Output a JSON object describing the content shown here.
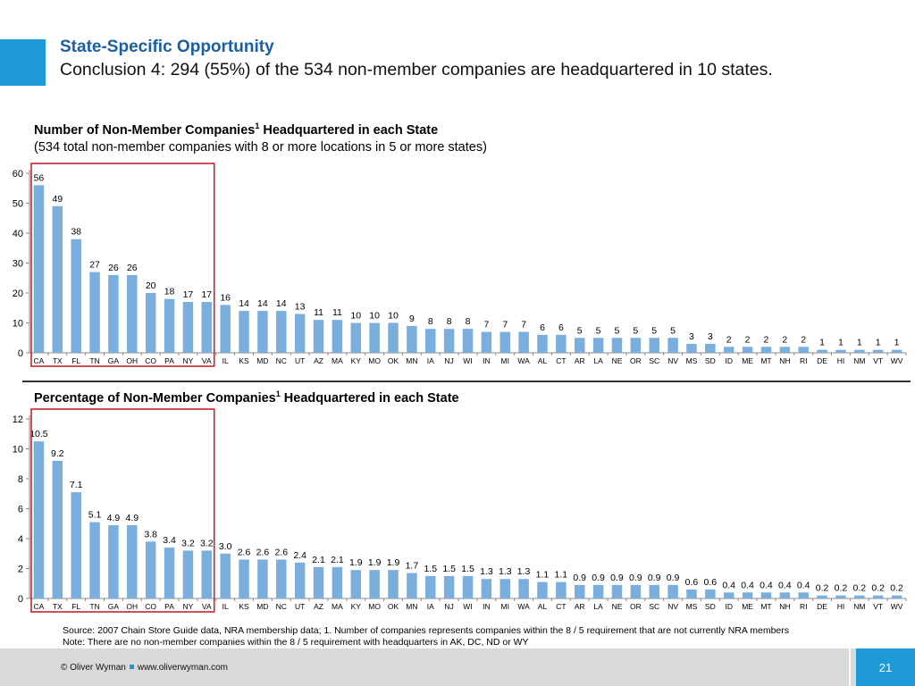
{
  "header": {
    "title": "State-Specific Opportunity",
    "subtitle": "Conclusion 4: 294 (55%) of the 534 non-member companies are headquartered in 10 states."
  },
  "colors": {
    "bar": "#7aaedc",
    "accent": "#1e9bd7",
    "highlight_box": "#c1272d",
    "title": "#1a5fa0"
  },
  "chart_data": [
    {
      "type": "bar",
      "title": "Number of Non-Member Companies",
      "title_sup": "1",
      "title_suffix": " Headquartered in each State",
      "subtitle": "(534 total non-member companies with 8 or more locations in 5 or more states)",
      "categories": [
        "CA",
        "TX",
        "FL",
        "TN",
        "GA",
        "OH",
        "CO",
        "PA",
        "NY",
        "VA",
        "IL",
        "KS",
        "MD",
        "NC",
        "UT",
        "AZ",
        "MA",
        "KY",
        "MO",
        "OK",
        "MN",
        "IA",
        "NJ",
        "WI",
        "IN",
        "MI",
        "WA",
        "AL",
        "CT",
        "AR",
        "LA",
        "NE",
        "OR",
        "SC",
        "NV",
        "MS",
        "SD",
        "ID",
        "ME",
        "MT",
        "NH",
        "RI",
        "DE",
        "HI",
        "NM",
        "VT",
        "WV"
      ],
      "values": [
        56,
        49,
        38,
        27,
        26,
        26,
        20,
        18,
        17,
        17,
        16,
        14,
        14,
        14,
        13,
        11,
        11,
        10,
        10,
        10,
        9,
        8,
        8,
        8,
        7,
        7,
        7,
        6,
        6,
        5,
        5,
        5,
        5,
        5,
        5,
        3,
        3,
        2,
        2,
        2,
        2,
        2,
        1,
        1,
        1,
        1,
        1
      ],
      "value_labels": [
        "56",
        "49",
        "38",
        "27",
        "26",
        "26",
        "20",
        "18",
        "17",
        "17",
        "16",
        "14",
        "14",
        "14",
        "13",
        "11",
        "11",
        "10",
        "10",
        "10",
        "9",
        "8",
        "8",
        "8",
        "7",
        "7",
        "7",
        "6",
        "6",
        "5",
        "5",
        "5",
        "5",
        "5",
        "5",
        "3",
        "3",
        "2",
        "2",
        "2",
        "2",
        "2",
        "1",
        "1",
        "1",
        "1",
        "1"
      ],
      "yticks": [
        "0",
        "10",
        "20",
        "30",
        "40",
        "50",
        "60"
      ],
      "ylim": [
        0,
        60
      ],
      "highlight": "top 10 states (CA to VA)"
    },
    {
      "type": "bar",
      "title": "Percentage of Non-Member Companies",
      "title_sup": "1",
      "title_suffix": " Headquartered in each State",
      "categories": [
        "CA",
        "TX",
        "FL",
        "TN",
        "GA",
        "OH",
        "CO",
        "PA",
        "NY",
        "VA",
        "IL",
        "KS",
        "MD",
        "NC",
        "UT",
        "AZ",
        "MA",
        "KY",
        "MO",
        "OK",
        "MN",
        "IA",
        "NJ",
        "WI",
        "IN",
        "MI",
        "WA",
        "AL",
        "CT",
        "AR",
        "LA",
        "NE",
        "OR",
        "SC",
        "NV",
        "MS",
        "SD",
        "ID",
        "ME",
        "MT",
        "NH",
        "RI",
        "DE",
        "HI",
        "NM",
        "VT",
        "WV"
      ],
      "values": [
        10.5,
        9.2,
        7.1,
        5.1,
        4.9,
        4.9,
        3.8,
        3.4,
        3.2,
        3.2,
        3.0,
        2.6,
        2.6,
        2.6,
        2.4,
        2.1,
        2.1,
        1.9,
        1.9,
        1.9,
        1.7,
        1.5,
        1.5,
        1.5,
        1.3,
        1.3,
        1.3,
        1.1,
        1.1,
        0.9,
        0.9,
        0.9,
        0.9,
        0.9,
        0.9,
        0.6,
        0.6,
        0.4,
        0.4,
        0.4,
        0.4,
        0.4,
        0.2,
        0.2,
        0.2,
        0.2,
        0.2
      ],
      "value_labels": [
        "10.5",
        "9.2",
        "7.1",
        "5.1",
        "4.9",
        "4.9",
        "3.8",
        "3.4",
        "3.2",
        "3.2",
        "3.0",
        "2.6",
        "2.6",
        "2.6",
        "2.4",
        "2.1",
        "2.1",
        "1.9",
        "1.9",
        "1.9",
        "1.7",
        "1.5",
        "1.5",
        "1.5",
        "1.3",
        "1.3",
        "1.3",
        "1.1",
        "1.1",
        "0.9",
        "0.9",
        "0.9",
        "0.9",
        "0.9",
        "0.9",
        "0.6",
        "0.6",
        "0.4",
        "0.4",
        "0.4",
        "0.4",
        "0.4",
        "0.2",
        "0.2",
        "0.2",
        "0.2",
        "0.2"
      ],
      "yticks": [
        "0",
        "2",
        "4",
        "6",
        "8",
        "10",
        "12"
      ],
      "ylim": [
        0,
        12
      ],
      "highlight": "top 10 states (CA to VA)"
    }
  ],
  "notes": {
    "source": "Source:  2007 Chain Store Guide data, NRA membership data; 1. Number of companies represents companies within the 8 / 5 requirement that are not currently NRA members",
    "note": "Note:  There are no non-member companies within the 8 / 5 requirement with headquarters in AK, DC, ND or WY"
  },
  "footer": {
    "copyright": "© Oliver Wyman",
    "website": "www.oliverwyman.com",
    "page_number": "21"
  }
}
